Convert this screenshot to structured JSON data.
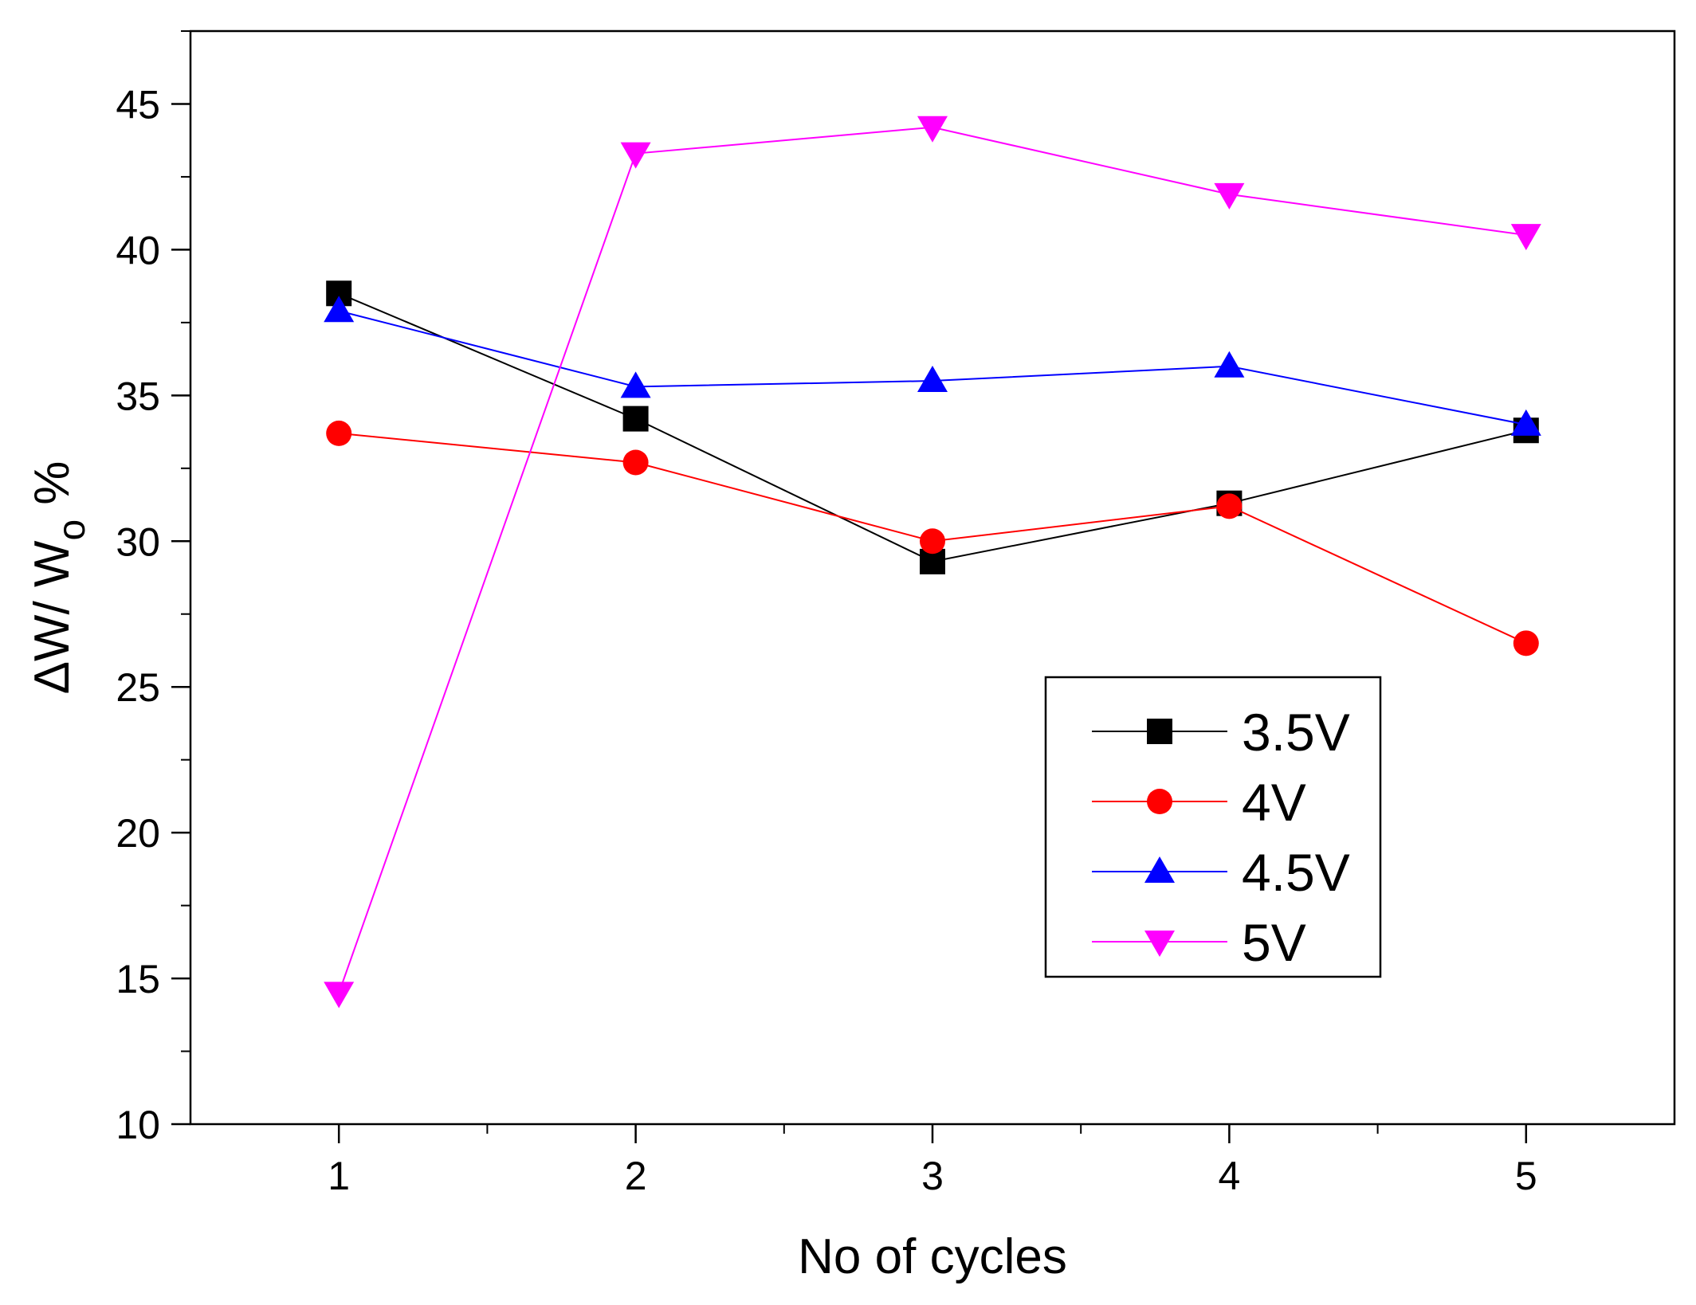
{
  "chart_data": {
    "type": "line",
    "xlabel": "No of cycles",
    "ylabel": {
      "main": "ΔW/ W",
      "subscript": "o",
      "suffix": "%"
    },
    "x": [
      1,
      2,
      3,
      4,
      5
    ],
    "xlim": [
      0.5,
      5.5
    ],
    "ylim": [
      10,
      47.5
    ],
    "xticks": [
      "1",
      "2",
      "3",
      "4",
      "5"
    ],
    "yticks": [
      "10",
      "15",
      "20",
      "25",
      "30",
      "35",
      "40",
      "45"
    ],
    "grid": false,
    "legend_position": "bottom-right",
    "series": [
      {
        "name": "3.5V",
        "color": "#000000",
        "marker": "square",
        "values": [
          38.5,
          34.2,
          29.3,
          31.3,
          33.8
        ]
      },
      {
        "name": "4V",
        "color": "#ff0000",
        "marker": "circle",
        "values": [
          33.7,
          32.7,
          30.0,
          31.2,
          26.5
        ]
      },
      {
        "name": "4.5V",
        "color": "#0000ff",
        "marker": "triangle-up",
        "values": [
          37.9,
          35.3,
          35.5,
          36.0,
          34.0
        ]
      },
      {
        "name": "5V",
        "color": "#ff00ff",
        "marker": "triangle-down",
        "values": [
          14.5,
          43.3,
          44.2,
          41.9,
          40.5
        ]
      }
    ]
  }
}
